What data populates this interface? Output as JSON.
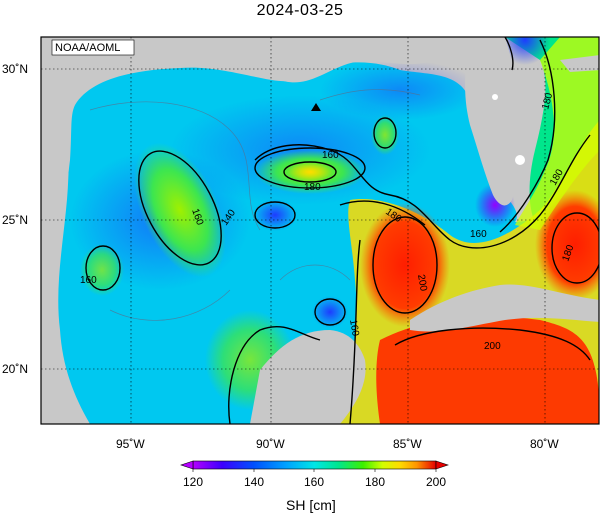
{
  "title": "2024-03-25",
  "credit": "NOAA/AOML",
  "colorbar": {
    "label": "SH [cm]",
    "ticks": [
      "120",
      "140",
      "160",
      "180",
      "200"
    ],
    "min": 120,
    "max": 200,
    "colors": [
      "#b400ff",
      "#3c00ff",
      "#0050ff",
      "#00a0ff",
      "#00e6e6",
      "#00e68c",
      "#3cf000",
      "#d2ff00",
      "#ffdc00",
      "#ff9600",
      "#ff3c00",
      "#e60000"
    ]
  },
  "axes": {
    "lon_labels": [
      "95˚W",
      "90˚W",
      "85˚W",
      "80˚W"
    ],
    "lat_labels": [
      "30˚N",
      "25˚N",
      "20˚N"
    ]
  },
  "contour_labels": [
    "160",
    "180",
    "160",
    "160",
    "140",
    "180",
    "160",
    "200",
    "200",
    "160",
    "180",
    "180",
    "180",
    "160"
  ],
  "marker": "black triangle"
}
